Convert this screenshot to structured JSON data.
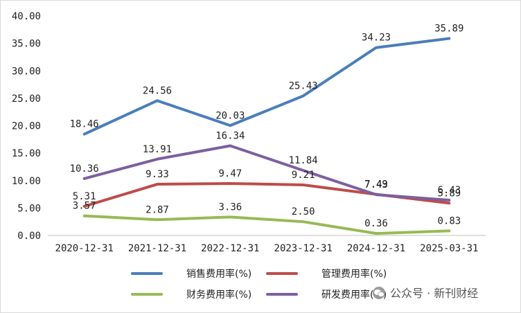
{
  "chart_data": {
    "type": "line",
    "categories": [
      "2020-12-31",
      "2021-12-31",
      "2022-12-31",
      "2023-12-31",
      "2024-12-31",
      "2025-03-31"
    ],
    "ylim": [
      0,
      40
    ],
    "yticks": [
      "0.00",
      "5.00",
      "10.00",
      "15.00",
      "20.00",
      "25.00",
      "30.00",
      "35.00",
      "40.00"
    ],
    "grid": false,
    "legend_position": "bottom",
    "series": [
      {
        "name": "销售费用率(%)",
        "color": "#4a7ebb",
        "values": [
          18.46,
          24.56,
          20.03,
          25.43,
          34.23,
          35.89
        ],
        "labels": [
          "18.46",
          "24.56",
          "20.03",
          "25.43",
          "34.23",
          "35.89"
        ]
      },
      {
        "name": "管理费用率(%)",
        "color": "#be4b48",
        "values": [
          5.31,
          9.33,
          9.47,
          9.21,
          7.49,
          5.89
        ],
        "labels": [
          "5.31",
          "9.33",
          "9.47",
          "9.21",
          "7.49",
          "5.89"
        ]
      },
      {
        "name": "财务费用率(%)",
        "color": "#98b954",
        "values": [
          3.57,
          2.87,
          3.36,
          2.5,
          0.36,
          0.83
        ],
        "labels": [
          "3.57",
          "2.87",
          "3.36",
          "2.50",
          "0.36",
          "0.83"
        ]
      },
      {
        "name": "研发费用率(%)",
        "color": "#7d5fa0",
        "values": [
          10.36,
          13.91,
          16.34,
          11.84,
          7.43,
          6.43
        ],
        "labels": [
          "10.36",
          "13.91",
          "16.34",
          "11.84",
          "7.43",
          "6.43"
        ]
      }
    ]
  },
  "watermark": {
    "text": "公众号 · 新刊财经",
    "icon": "wechat-icon"
  }
}
